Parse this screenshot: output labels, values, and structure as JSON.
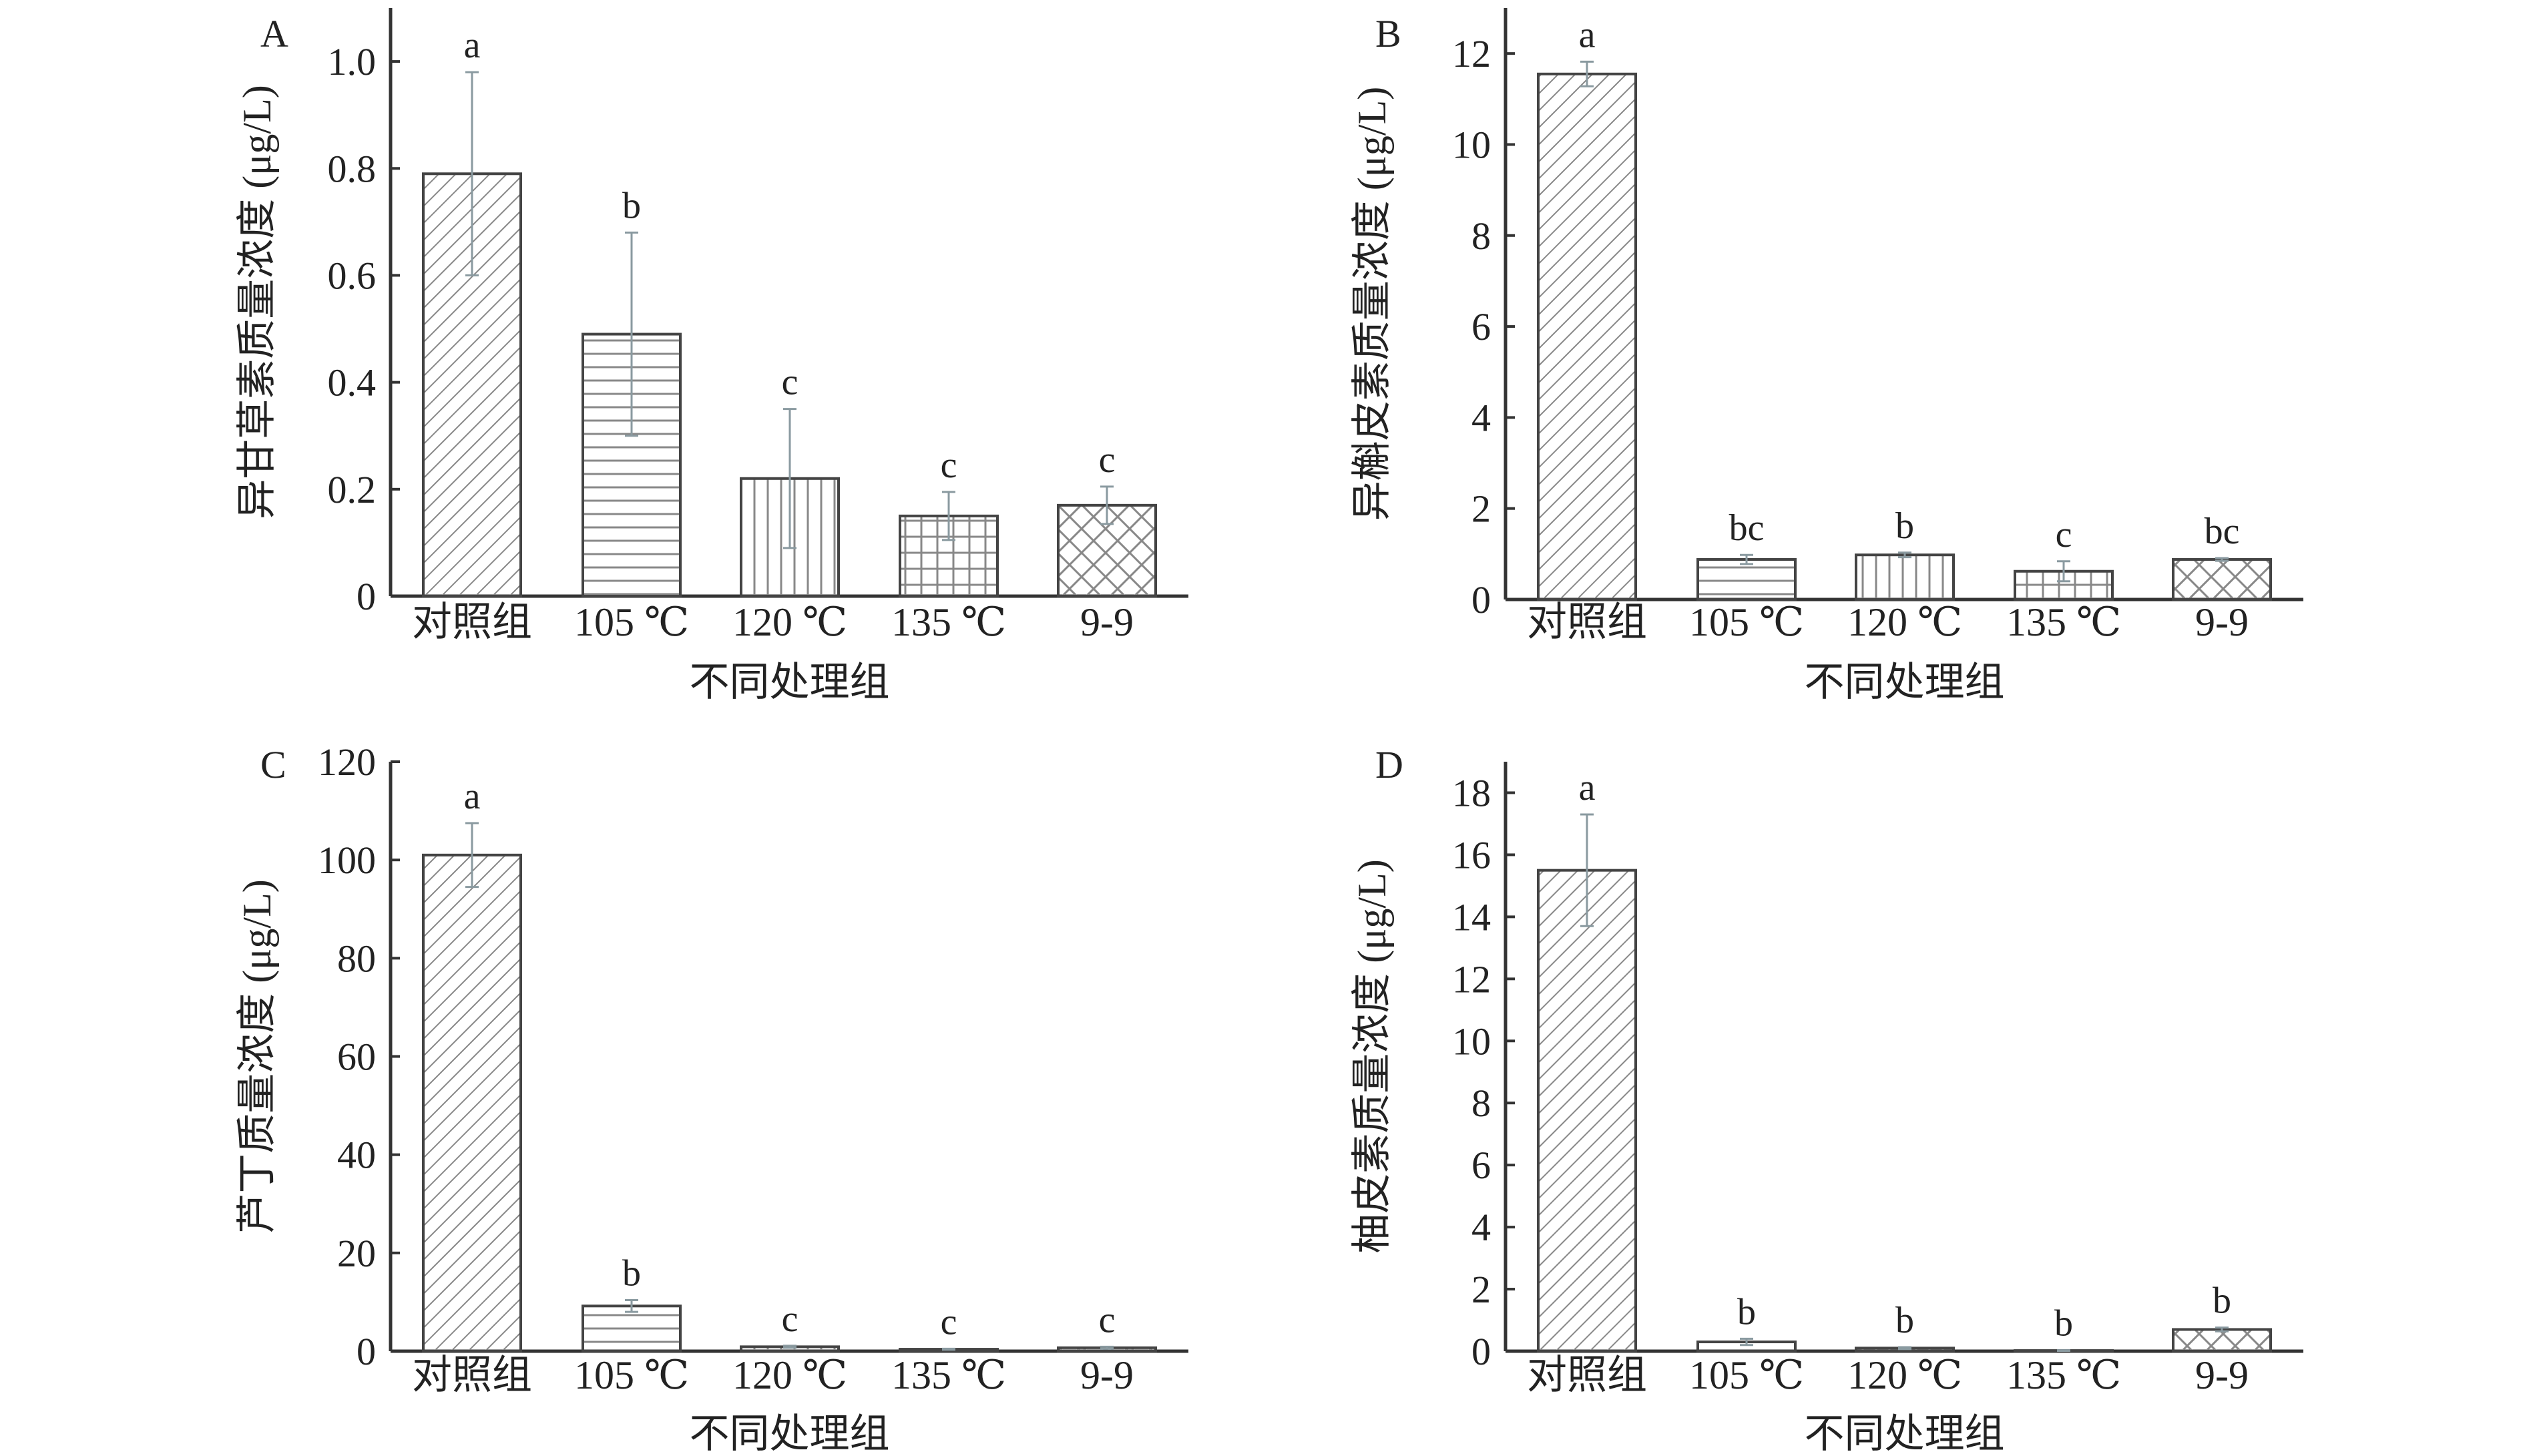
{
  "colors": {
    "axis": "#333333",
    "bar_stroke": "#444444",
    "hatch": "#888888",
    "errorbar": "#8a9aa0"
  },
  "chart_data": [
    {
      "type": "bar",
      "panel": "A",
      "categories": [
        "对照组",
        "105 ℃",
        "120 ℃",
        "135 ℃",
        "9-9"
      ],
      "values": [
        0.79,
        0.49,
        0.22,
        0.15,
        0.17
      ],
      "errors": [
        0.19,
        0.19,
        0.13,
        0.045,
        0.035
      ],
      "significance": [
        "a",
        "b",
        "c",
        "c",
        "c"
      ],
      "patterns": [
        "diag",
        "horiz",
        "vert",
        "grid",
        "cross"
      ],
      "xlabel": "不同处理组",
      "ylabel": "异甘草素质量浓度 (μg/L)",
      "ylim": [
        0,
        1.1
      ],
      "yticks": [
        0,
        0.2,
        0.4,
        0.6,
        0.8,
        1.0
      ],
      "ytick_labels": [
        "0",
        "0.2",
        "0.4",
        "0.6",
        "0.8",
        "1.0"
      ]
    },
    {
      "type": "bar",
      "panel": "B",
      "categories": [
        "对照组",
        "105 ℃",
        "120 ℃",
        "135 ℃",
        "9-9"
      ],
      "values": [
        11.55,
        0.88,
        0.98,
        0.62,
        0.88
      ],
      "errors": [
        0.27,
        0.1,
        0.05,
        0.22,
        0.03
      ],
      "significance": [
        "a",
        "bc",
        "b",
        "c",
        "bc"
      ],
      "patterns": [
        "diag",
        "horiz",
        "vert",
        "grid",
        "cross"
      ],
      "xlabel": "不同处理组",
      "ylabel": "异槲皮素质量浓度 (μg/L)",
      "ylim": [
        0,
        13
      ],
      "yticks": [
        0,
        2,
        4,
        6,
        8,
        10,
        12
      ],
      "ytick_labels": [
        "0",
        "2",
        "4",
        "6",
        "8",
        "10",
        "12"
      ]
    },
    {
      "type": "bar",
      "panel": "C",
      "categories": [
        "对照组",
        "105 ℃",
        "120 ℃",
        "135 ℃",
        "9-9"
      ],
      "values": [
        101,
        9.2,
        0.9,
        0.4,
        0.7
      ],
      "errors": [
        6.5,
        1.2,
        0.2,
        0.1,
        0.2
      ],
      "significance": [
        "a",
        "b",
        "c",
        "c",
        "c"
      ],
      "patterns": [
        "diag",
        "horiz",
        "vert",
        "grid",
        "cross"
      ],
      "xlabel": "不同处理组",
      "ylabel": "芦丁质量浓度 (μg/L)",
      "ylim": [
        0,
        120
      ],
      "yticks": [
        0,
        20,
        40,
        60,
        80,
        100,
        120
      ],
      "ytick_labels": [
        "0",
        "20",
        "40",
        "60",
        "80",
        "100",
        "120"
      ]
    },
    {
      "type": "bar",
      "panel": "D",
      "categories": [
        "对照组",
        "105 ℃",
        "120 ℃",
        "135 ℃",
        "9-9"
      ],
      "values": [
        15.5,
        0.3,
        0.1,
        0.02,
        0.7
      ],
      "errors": [
        1.8,
        0.1,
        0.03,
        0.01,
        0.06
      ],
      "significance": [
        "a",
        "b",
        "b",
        "b",
        "b"
      ],
      "patterns": [
        "diag",
        "horiz",
        "vert",
        "grid",
        "cross"
      ],
      "xlabel": "不同处理组",
      "ylabel": "柚皮素质量浓度 (μg/L)",
      "ylim": [
        0,
        19
      ],
      "yticks": [
        0,
        2,
        4,
        6,
        8,
        10,
        12,
        14,
        16,
        18
      ],
      "ytick_labels": [
        "0",
        "2",
        "4",
        "6",
        "8",
        "10",
        "12",
        "14",
        "16",
        "18"
      ]
    }
  ]
}
